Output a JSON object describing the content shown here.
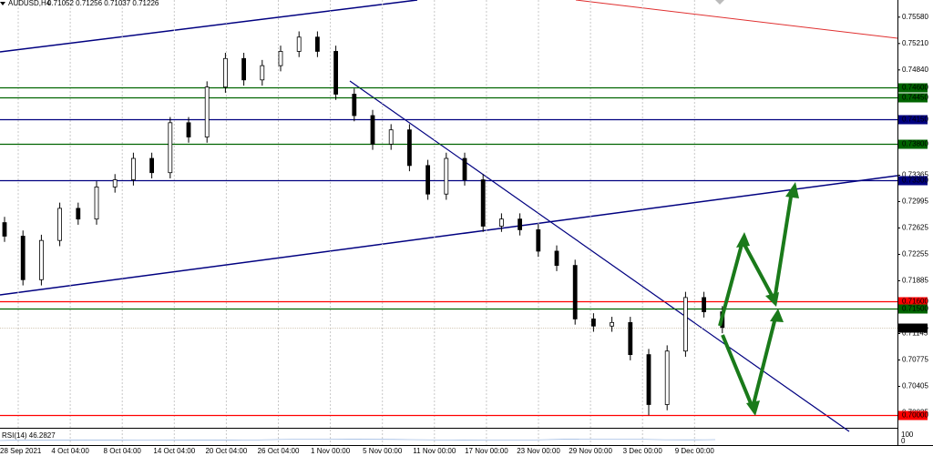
{
  "chart_data": {
    "type": "candlestick",
    "header": {
      "symbol": "AUDUSD,H4",
      "quote": "0.71052 0.71256 0.71037 0.71226"
    },
    "categories": [
      "28 Sep 2021",
      "4 Oct 04:00",
      "8 Oct 04:00",
      "14 Oct 04:00",
      "20 Oct 04:00",
      "26 Oct 04:00",
      "1 Nov 00:00",
      "5 Nov 00:00",
      "11 Nov 00:00",
      "17 Nov 00:00",
      "23 Nov 00:00",
      "29 Nov 00:00",
      "3 Dec 00:00",
      "9 Dec 00:00"
    ],
    "open": [
      0.727,
      0.7251,
      0.719,
      0.7245,
      0.729,
      0.7275,
      0.732,
      0.733,
      0.736,
      0.734,
      0.741,
      0.739,
      0.746,
      0.75,
      0.747,
      0.749,
      0.751,
      0.753,
      0.751,
      0.745,
      0.742,
      0.738,
      0.74,
      0.735,
      0.731,
      0.736,
      0.733,
      0.7265,
      0.7275,
      0.726,
      0.723,
      0.721,
      0.7135,
      0.7125,
      0.713,
      0.7085,
      0.7015,
      0.709,
      0.7165,
      0.7145
    ],
    "high": [
      0.7278,
      0.7259,
      0.7253,
      0.7298,
      0.7298,
      0.7328,
      0.7338,
      0.7368,
      0.7368,
      0.7418,
      0.7418,
      0.7468,
      0.7508,
      0.7508,
      0.7498,
      0.7518,
      0.7538,
      0.7538,
      0.7518,
      0.7458,
      0.7428,
      0.7408,
      0.7408,
      0.7358,
      0.7368,
      0.7368,
      0.7338,
      0.7283,
      0.7283,
      0.7268,
      0.7238,
      0.7218,
      0.7143,
      0.7138,
      0.7138,
      0.7093,
      0.7098,
      0.7173,
      0.7173,
      0.7153
    ],
    "low": [
      0.7243,
      0.7182,
      0.7182,
      0.7237,
      0.7267,
      0.7267,
      0.7312,
      0.7322,
      0.7332,
      0.7332,
      0.7382,
      0.7382,
      0.7452,
      0.7462,
      0.7462,
      0.7482,
      0.7502,
      0.7502,
      0.7442,
      0.7412,
      0.7372,
      0.7372,
      0.7342,
      0.7302,
      0.7302,
      0.7322,
      0.7257,
      0.7257,
      0.7252,
      0.7222,
      0.7202,
      0.7127,
      0.7117,
      0.7117,
      0.7077,
      0.7,
      0.7007,
      0.7082,
      0.7137,
      0.7115
    ],
    "close": [
      0.7251,
      0.719,
      0.7245,
      0.729,
      0.7275,
      0.732,
      0.733,
      0.736,
      0.734,
      0.741,
      0.739,
      0.746,
      0.75,
      0.747,
      0.749,
      0.751,
      0.753,
      0.751,
      0.745,
      0.742,
      0.738,
      0.74,
      0.735,
      0.731,
      0.736,
      0.733,
      0.7265,
      0.7275,
      0.726,
      0.723,
      0.721,
      0.7135,
      0.7125,
      0.713,
      0.7085,
      0.7015,
      0.709,
      0.7165,
      0.7145,
      0.7123
    ],
    "ylim": [
      0.6985,
      0.7582
    ],
    "yticks": [
      {
        "value": 0.7558,
        "label": "0.75580"
      },
      {
        "value": 0.7521,
        "label": "0.75210"
      },
      {
        "value": 0.7484,
        "label": "0.74840"
      },
      {
        "value": 0.73365,
        "label": "0.73365"
      },
      {
        "value": 0.72995,
        "label": "0.72995"
      },
      {
        "value": 0.72625,
        "label": "0.72625"
      },
      {
        "value": 0.72255,
        "label": "0.72255"
      },
      {
        "value": 0.71885,
        "label": "0.71885"
      },
      {
        "value": 0.71145,
        "label": "0.71145"
      },
      {
        "value": 0.70775,
        "label": "0.70775"
      },
      {
        "value": 0.70405,
        "label": "0.70405"
      },
      {
        "value": 0.70035,
        "label": "0.70035"
      }
    ],
    "levels": [
      {
        "value": 0.746,
        "label": "0.74600",
        "color": "#006400"
      },
      {
        "value": 0.7445,
        "label": "0.74450",
        "color": "#006400"
      },
      {
        "value": 0.7415,
        "label": "0.74150",
        "color": "#000080"
      },
      {
        "value": 0.738,
        "label": "0.73800",
        "color": "#006400"
      },
      {
        "value": 0.733,
        "label": "0.73300",
        "color": "#000080"
      },
      {
        "value": 0.716,
        "label": "0.71600",
        "color": "#ff0000"
      },
      {
        "value": 0.715,
        "label": "0.71500",
        "color": "#006400"
      },
      {
        "value": 0.71226,
        "label": "0.71226",
        "color": "#000000"
      },
      {
        "value": 0.7,
        "label": "0.70000",
        "color": "#ff0000"
      }
    ],
    "rsi_title": "RSI(14) 46.2827",
    "rsi_scale": [
      "100",
      "0"
    ]
  }
}
